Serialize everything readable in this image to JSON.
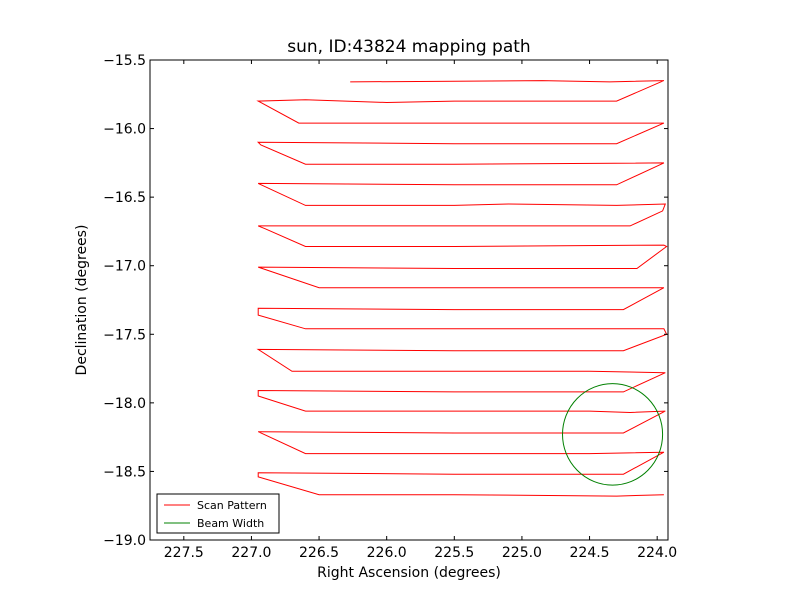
{
  "chart_data": {
    "type": "line",
    "title": "sun, ID:43824 mapping path",
    "xlabel": "Right Ascension (degrees)",
    "ylabel": "Declination (degrees)",
    "xlim": [
      227.75,
      223.92
    ],
    "ylim": [
      -19.0,
      -15.5
    ],
    "xticks": [
      227.5,
      227.0,
      226.5,
      226.0,
      225.5,
      225.0,
      224.5,
      224.0
    ],
    "xtick_labels": [
      "227.5",
      "227.0",
      "226.5",
      "226.0",
      "225.5",
      "225.0",
      "224.5",
      "224.0"
    ],
    "yticks": [
      -15.5,
      -16.0,
      -16.5,
      -17.0,
      -17.5,
      -18.0,
      -18.5,
      -19.0
    ],
    "ytick_labels": [
      "−15.5",
      "−16.0",
      "−16.5",
      "−17.0",
      "−17.5",
      "−18.0",
      "−18.5",
      "−19.0"
    ],
    "grid": false,
    "legend_position": "lower-left",
    "series": [
      {
        "name": "Scan Pattern",
        "color": "#ff0000",
        "x": [
          226.27,
          224.85,
          224.35,
          223.95,
          224.3,
          225.5,
          226.0,
          226.6,
          226.95,
          226.65,
          225.5,
          223.95,
          224.3,
          225.5,
          226.95,
          226.93,
          226.6,
          225.5,
          223.95,
          224.3,
          225.5,
          226.95,
          226.6,
          225.5,
          225.1,
          224.3,
          223.94,
          223.96,
          224.2,
          225.5,
          226.95,
          226.9,
          226.6,
          225.5,
          223.95,
          223.93,
          224.15,
          225.5,
          226.95,
          226.5,
          225.5,
          224.3,
          223.95,
          224.25,
          225.5,
          226.95,
          226.95,
          226.6,
          225.5,
          223.95,
          223.93,
          224.25,
          225.5,
          226.95,
          226.7,
          225.5,
          224.5,
          223.94,
          224.25,
          225.5,
          226.95,
          226.95,
          226.6,
          225.5,
          224.5,
          224.2,
          223.94,
          224.25,
          225.5,
          226.95,
          226.6,
          225.5,
          224.5,
          223.95,
          224.25,
          225.5,
          226.95,
          226.95,
          226.5,
          225.5,
          224.3,
          223.95
        ],
        "y": [
          -15.66,
          -15.65,
          -15.66,
          -15.65,
          -15.8,
          -15.8,
          -15.81,
          -15.79,
          -15.8,
          -15.96,
          -15.96,
          -15.96,
          -16.11,
          -16.11,
          -16.1,
          -16.12,
          -16.26,
          -16.26,
          -16.25,
          -16.41,
          -16.41,
          -16.4,
          -16.56,
          -16.56,
          -16.55,
          -16.56,
          -16.55,
          -16.6,
          -16.71,
          -16.71,
          -16.71,
          -16.73,
          -16.86,
          -16.86,
          -16.85,
          -16.86,
          -17.02,
          -17.02,
          -17.01,
          -17.16,
          -17.16,
          -17.16,
          -17.16,
          -17.32,
          -17.32,
          -17.31,
          -17.36,
          -17.46,
          -17.46,
          -17.46,
          -17.5,
          -17.62,
          -17.62,
          -17.61,
          -17.77,
          -17.77,
          -17.77,
          -17.78,
          -17.92,
          -17.92,
          -17.91,
          -17.95,
          -18.06,
          -18.06,
          -18.06,
          -18.07,
          -18.06,
          -18.22,
          -18.22,
          -18.21,
          -18.37,
          -18.37,
          -18.37,
          -18.36,
          -18.52,
          -18.52,
          -18.51,
          -18.54,
          -18.67,
          -18.67,
          -18.68,
          -18.67
        ]
      },
      {
        "name": "Beam Width",
        "color": "#008000",
        "shape": "circle",
        "center": [
          224.33,
          -18.23
        ],
        "radius_deg": 0.37
      }
    ]
  }
}
